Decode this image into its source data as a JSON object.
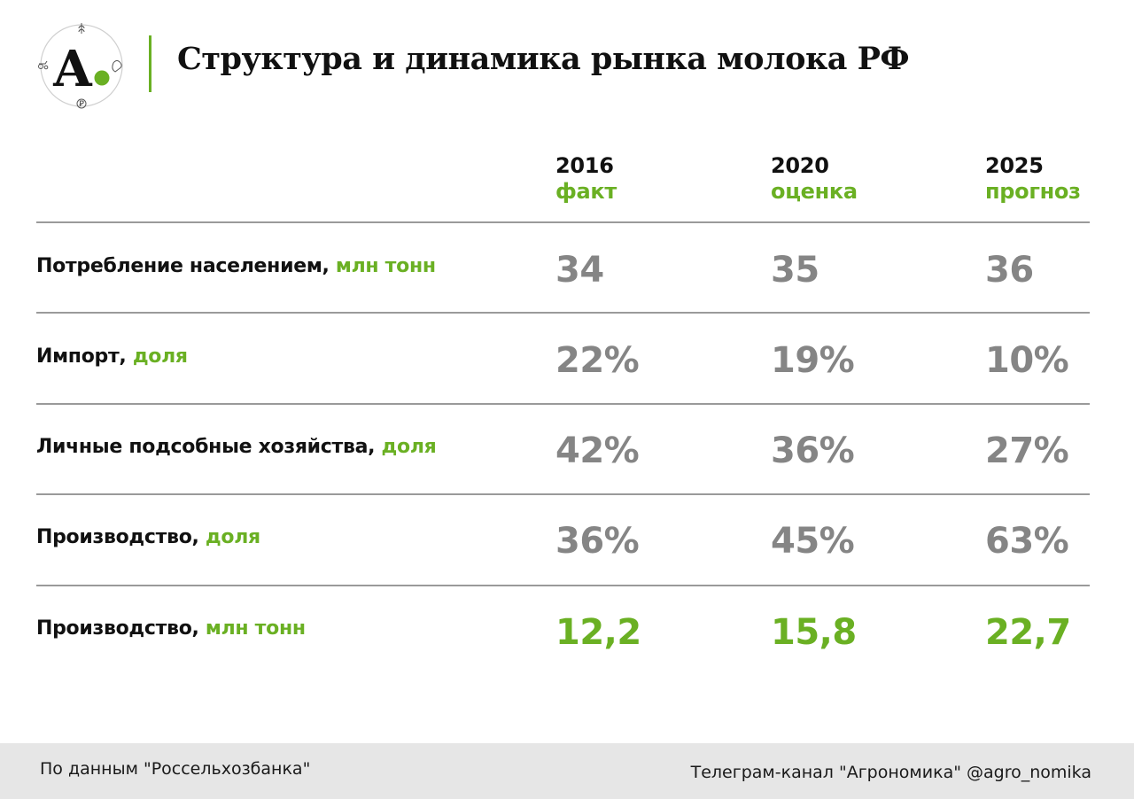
{
  "header": {
    "logo_letter": "А",
    "title": "Структура и динамика рынка молока РФ"
  },
  "colors": {
    "accent": "#6ab023",
    "value_gray": "#858585",
    "rule": "#9a9a9a",
    "footer_bg": "#e6e6e6"
  },
  "chart_data": {
    "type": "table",
    "columns": [
      {
        "year": "2016",
        "kind": "факт"
      },
      {
        "year": "2020",
        "kind": "оценка"
      },
      {
        "year": "2025",
        "kind": "прогноз"
      }
    ],
    "rows": [
      {
        "label": "Потребление населением,",
        "unit": "млн тонн",
        "values": [
          "34",
          "35",
          "36"
        ],
        "highlight": false
      },
      {
        "label": "Импорт,",
        "unit": "доля",
        "values": [
          "22%",
          "19%",
          "10%"
        ],
        "highlight": false
      },
      {
        "label": "Личные подсобные хозяйства,",
        "unit": "доля",
        "values": [
          "42%",
          "36%",
          "27%"
        ],
        "highlight": false
      },
      {
        "label": "Производство,",
        "unit": "доля",
        "values": [
          "36%",
          "45%",
          "63%"
        ],
        "highlight": false
      },
      {
        "label": "Производство,",
        "unit": "млн тонн",
        "values": [
          "12,2",
          "15,8",
          "22,7"
        ],
        "highlight": true
      }
    ]
  },
  "footer": {
    "source": "По данным \"Россельхозбанка\"",
    "channel": "Телеграм-канал \"Агрономика\" @agro_nomika"
  }
}
